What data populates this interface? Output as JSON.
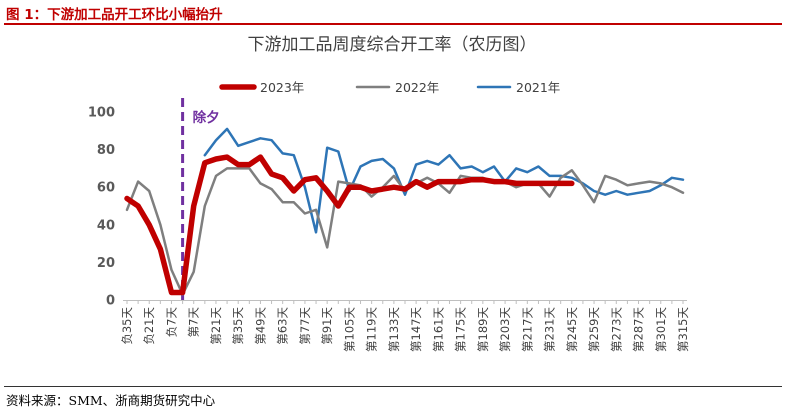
{
  "heading": "图 1：下游加工品开工环比小幅抬升",
  "source": "资料来源：SMM、浙商期货研究中心",
  "colors": {
    "heading": "#c00000",
    "s2023": "#c00000",
    "s2022": "#7f7f7f",
    "s2021": "#2e75b6",
    "marker": "#7030a0",
    "axis": "#bfbfbf"
  },
  "chart_data": {
    "type": "line",
    "title": "下游加工品周度综合开工率（农历图）",
    "xlabel": "",
    "ylabel": "",
    "ylim": [
      0,
      100
    ],
    "yticks": [
      0,
      20,
      40,
      60,
      80,
      100
    ],
    "grid": false,
    "legend_position": "top",
    "x": [
      -35,
      -28,
      -21,
      -14,
      -7,
      0,
      7,
      14,
      21,
      28,
      35,
      42,
      49,
      56,
      63,
      70,
      77,
      84,
      91,
      98,
      105,
      112,
      119,
      126,
      133,
      140,
      147,
      154,
      161,
      168,
      175,
      182,
      189,
      196,
      203,
      210,
      217,
      224,
      231,
      238,
      245,
      252,
      259,
      266,
      273,
      280,
      287,
      294,
      301,
      308,
      315
    ],
    "x_tick_values": [
      -35,
      -21,
      -7,
      7,
      21,
      35,
      49,
      63,
      77,
      91,
      105,
      119,
      133,
      147,
      161,
      175,
      189,
      203,
      217,
      231,
      245,
      259,
      273,
      287,
      301,
      315
    ],
    "x_tick_labels": [
      "负35天",
      "负21天",
      "负7天",
      "第7天",
      "第21天",
      "第35天",
      "第49天",
      "第63天",
      "第77天",
      "第91天",
      "第105天",
      "第119天",
      "第133天",
      "第147天",
      "第161天",
      "第175天",
      "第189天",
      "第203天",
      "第217天",
      "第231天",
      "第245天",
      "第259天",
      "第273天",
      "第287天",
      "第301天",
      "第315天"
    ],
    "annotation": {
      "label": "除夕",
      "x": 0
    },
    "series": [
      {
        "name": "2023年",
        "color": "#c00000",
        "values": [
          54,
          50,
          40,
          27,
          4,
          4,
          50,
          73,
          75,
          76,
          72,
          72,
          76,
          67,
          65,
          58,
          64,
          65,
          58,
          50,
          60,
          60,
          58,
          59,
          60,
          59,
          63,
          60,
          63,
          63,
          63,
          64,
          64,
          63,
          63,
          62,
          62,
          62,
          62,
          62,
          62,
          null,
          null,
          null,
          null,
          null,
          null,
          null,
          null,
          null,
          null
        ]
      },
      {
        "name": "2022年",
        "color": "#7f7f7f",
        "values": [
          48,
          63,
          58,
          40,
          16,
          3,
          15,
          50,
          66,
          70,
          70,
          70,
          62,
          59,
          52,
          52,
          46,
          48,
          28,
          63,
          62,
          61,
          55,
          60,
          66,
          58,
          62,
          65,
          62,
          57,
          66,
          65,
          65,
          63,
          63,
          60,
          62,
          62,
          55,
          65,
          69,
          61,
          52,
          66,
          64,
          61,
          62,
          63,
          62,
          60,
          57
        ]
      },
      {
        "name": "2021年",
        "color": "#2e75b6",
        "values": [
          null,
          null,
          null,
          null,
          4,
          4,
          null,
          77,
          85,
          91,
          82,
          84,
          86,
          85,
          78,
          77,
          60,
          36,
          81,
          79,
          58,
          71,
          74,
          75,
          70,
          56,
          72,
          74,
          72,
          77,
          70,
          71,
          68,
          71,
          63,
          70,
          68,
          71,
          66,
          66,
          65,
          62,
          58,
          56,
          58,
          56,
          57,
          58,
          61,
          65,
          64
        ]
      }
    ]
  }
}
